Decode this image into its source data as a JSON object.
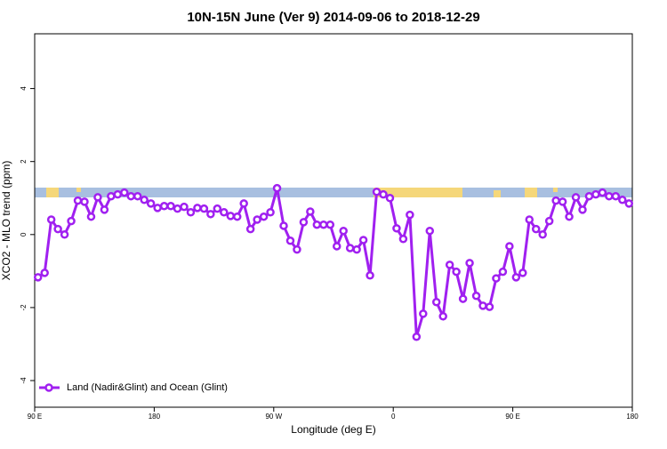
{
  "chart_data": {
    "type": "line",
    "title": "10N-15N June (Ver 9)   2014-09-06 to 2018-12-29",
    "x_label": "Longitude (deg E)",
    "y_label": "XCO2 - MLO trend (ppm)",
    "x": [
      92.5,
      97.5,
      102.5,
      107.5,
      112.5,
      117.5,
      122.5,
      127.5,
      132.5,
      137.5,
      142.5,
      147.5,
      152.5,
      157.5,
      162.5,
      167.5,
      172.5,
      177.5,
      182.5,
      187.5,
      192.5,
      197.5,
      202.5,
      207.5,
      212.5,
      217.5,
      222.5,
      227.5,
      232.5,
      237.5,
      242.5,
      247.5,
      252.5,
      257.5,
      262.5,
      267.5,
      272.5,
      277.5,
      282.5,
      287.5,
      292.5,
      297.5,
      302.5,
      307.5,
      312.5,
      317.5,
      322.5,
      327.5,
      332.5,
      337.5,
      342.5,
      347.5,
      352.5,
      357.5,
      362.5,
      367.5,
      372.5,
      377.5,
      382.5,
      387.5,
      392.5,
      397.5,
      402.5,
      407.5,
      412.5,
      417.5,
      422.5,
      427.5,
      432.5,
      437.5,
      442.5,
      447.5,
      452.5,
      457.5,
      462.5,
      467.5,
      472.5,
      477.5,
      482.5,
      487.5,
      492.5,
      497.5,
      502.5,
      507.5,
      512.5,
      517.5,
      522.5,
      527.5,
      532.5,
      537.5
    ],
    "series": [
      {
        "name": "Land (Nadir&Glint) and Ocean (Glint)",
        "color": "#a020f0",
        "values": [
          -1.17,
          -1.05,
          0.41,
          0.15,
          0.0,
          0.37,
          0.93,
          0.9,
          0.49,
          1.02,
          0.68,
          1.05,
          1.1,
          1.15,
          1.05,
          1.05,
          0.95,
          0.85,
          0.73,
          0.78,
          0.78,
          0.71,
          0.76,
          0.61,
          0.73,
          0.71,
          0.56,
          0.71,
          0.61,
          0.51,
          0.49,
          0.85,
          0.15,
          0.41,
          0.49,
          0.61,
          1.27,
          0.24,
          -0.17,
          -0.41,
          0.34,
          0.63,
          0.27,
          0.27,
          0.27,
          -0.32,
          0.1,
          -0.37,
          -0.41,
          -0.15,
          -1.12,
          1.17,
          1.1,
          1.0,
          0.17,
          -0.12,
          0.54,
          -2.8,
          -2.17,
          0.1,
          -1.85,
          -2.24,
          -0.83,
          -1.02,
          -1.76,
          -0.78,
          -1.68,
          -1.95,
          -1.98,
          -1.2,
          -1.02,
          -0.32,
          -1.17,
          -1.05,
          0.41,
          0.15,
          0.0,
          0.37,
          0.93,
          0.9,
          0.49,
          1.02,
          0.68,
          1.05,
          1.1,
          1.15,
          1.05,
          1.05,
          0.95,
          0.85
        ]
      }
    ],
    "xlim": [
      90,
      540
    ],
    "xticks": [
      {
        "value": 90,
        "label": "90 E"
      },
      {
        "value": 180,
        "label": "180"
      },
      {
        "value": 270,
        "label": "90 W"
      },
      {
        "value": 360,
        "label": "0"
      },
      {
        "value": 450,
        "label": "90 E"
      },
      {
        "value": 540,
        "label": "180"
      }
    ],
    "ylim": [
      -4.73,
      5.5
    ],
    "yticks": [
      -4,
      -2,
      0,
      2,
      4
    ],
    "legend": "bottom-left"
  }
}
